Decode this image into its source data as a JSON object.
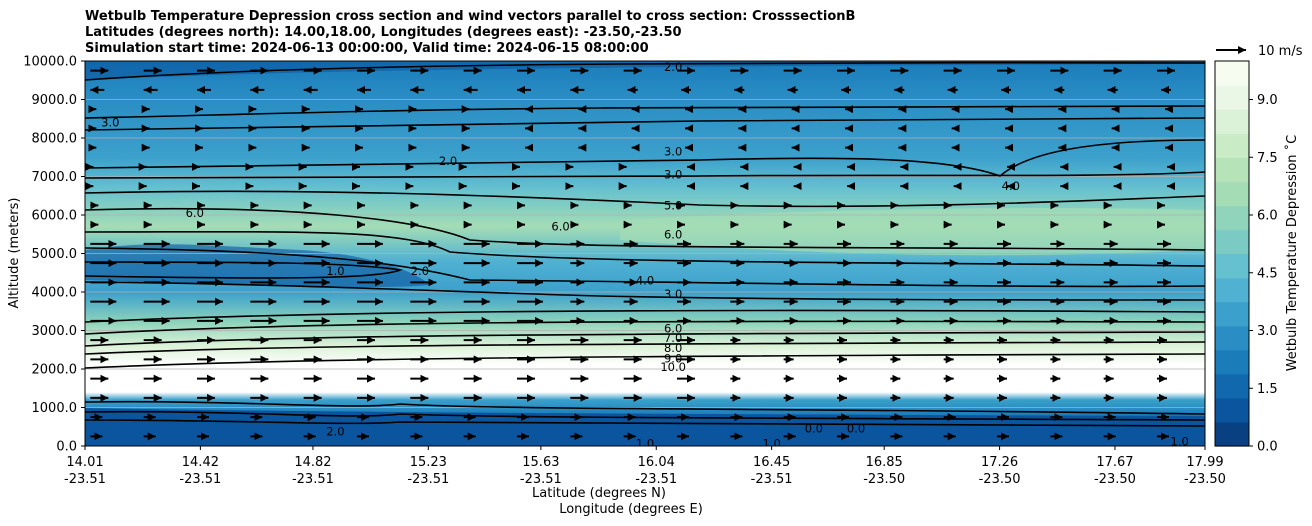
{
  "chart_data": {
    "type": "contour",
    "title_lines": [
      "Wetbulb Temperature Depression cross section and wind vectors parallel to cross section: CrosssectionB",
      "Latitudes (degrees north): 14.00,18.00, Longitudes (degrees east): -23.50,-23.50",
      "Simulation start time: 2024-06-13 00:00:00, Valid time: 2024-06-15 08:00:00"
    ],
    "ylabel": "Altitude (meters)",
    "xlabel_1": "Latitude (degrees N)",
    "xlabel_2": "Longitude (degrees E)",
    "ylim": [
      0,
      10000
    ],
    "y_ticks": [
      "0.0",
      "1000.0",
      "2000.0",
      "3000.0",
      "4000.0",
      "5000.0",
      "6000.0",
      "7000.0",
      "8000.0",
      "9000.0",
      "10000.0"
    ],
    "x_ticks": [
      {
        "lat": "14.01",
        "lon": "-23.51"
      },
      {
        "lat": "14.42",
        "lon": "-23.51"
      },
      {
        "lat": "14.82",
        "lon": "-23.51"
      },
      {
        "lat": "15.23",
        "lon": "-23.51"
      },
      {
        "lat": "15.63",
        "lon": "-23.51"
      },
      {
        "lat": "16.04",
        "lon": "-23.51"
      },
      {
        "lat": "16.45",
        "lon": "-23.51"
      },
      {
        "lat": "16.85",
        "lon": "-23.50"
      },
      {
        "lat": "17.26",
        "lon": "-23.50"
      },
      {
        "lat": "17.67",
        "lon": "-23.50"
      },
      {
        "lat": "17.99",
        "lon": "-23.50"
      }
    ],
    "colorbar": {
      "label": "Wetbulb Temperature Depression ˚C",
      "range": [
        0,
        10
      ],
      "ticks": [
        "0.0",
        "1.5",
        "3.0",
        "4.5",
        "6.0",
        "7.5",
        "9.0"
      ],
      "colors": [
        "#084081",
        "#0a559e",
        "#1168ac",
        "#1b7cba",
        "#2a8ec4",
        "#3ca0cc",
        "#50b1d2",
        "#65c0cf",
        "#7bcbc4",
        "#8fd4bb",
        "#a4ddb5",
        "#b6e3b8",
        "#c9ebc6",
        "#dcf2d8",
        "#ebf7e6",
        "#f7fcf0"
      ]
    },
    "wind_key": "10 m/s",
    "grid": "horizontal",
    "contour_labels": [
      {
        "text": "2.0",
        "x": 16.1,
        "y": 9840
      },
      {
        "text": "3.0",
        "x": 14.1,
        "y": 8400
      },
      {
        "text": "2.0",
        "x": 15.3,
        "y": 7400
      },
      {
        "text": "3.0",
        "x": 16.1,
        "y": 7650
      },
      {
        "text": "3.0",
        "x": 16.1,
        "y": 7050
      },
      {
        "text": "4.0",
        "x": 17.3,
        "y": 6750
      },
      {
        "text": "5.0",
        "x": 16.1,
        "y": 6250
      },
      {
        "text": "6.0",
        "x": 14.4,
        "y": 6050
      },
      {
        "text": "6.0",
        "x": 15.7,
        "y": 5700
      },
      {
        "text": "6.0",
        "x": 16.1,
        "y": 5500
      },
      {
        "text": "1.0",
        "x": 14.9,
        "y": 4550
      },
      {
        "text": "2.0",
        "x": 15.2,
        "y": 4550
      },
      {
        "text": "4.0",
        "x": 16.0,
        "y": 4300
      },
      {
        "text": "3.0",
        "x": 16.1,
        "y": 3950
      },
      {
        "text": "6.0",
        "x": 16.1,
        "y": 3050
      },
      {
        "text": "7.0",
        "x": 16.1,
        "y": 2800
      },
      {
        "text": "8.0",
        "x": 16.1,
        "y": 2550
      },
      {
        "text": "9.0",
        "x": 16.1,
        "y": 2270
      },
      {
        "text": "10.0",
        "x": 16.1,
        "y": 2050
      },
      {
        "text": "2.0",
        "x": 14.9,
        "y": 380
      },
      {
        "text": "1.0",
        "x": 16.0,
        "y": 60
      },
      {
        "text": "1.0",
        "x": 16.45,
        "y": 60
      },
      {
        "text": "0.0",
        "x": 16.6,
        "y": 450
      },
      {
        "text": "0.0",
        "x": 16.75,
        "y": 450
      },
      {
        "text": "1.0",
        "x": 17.9,
        "y": 120
      }
    ]
  }
}
